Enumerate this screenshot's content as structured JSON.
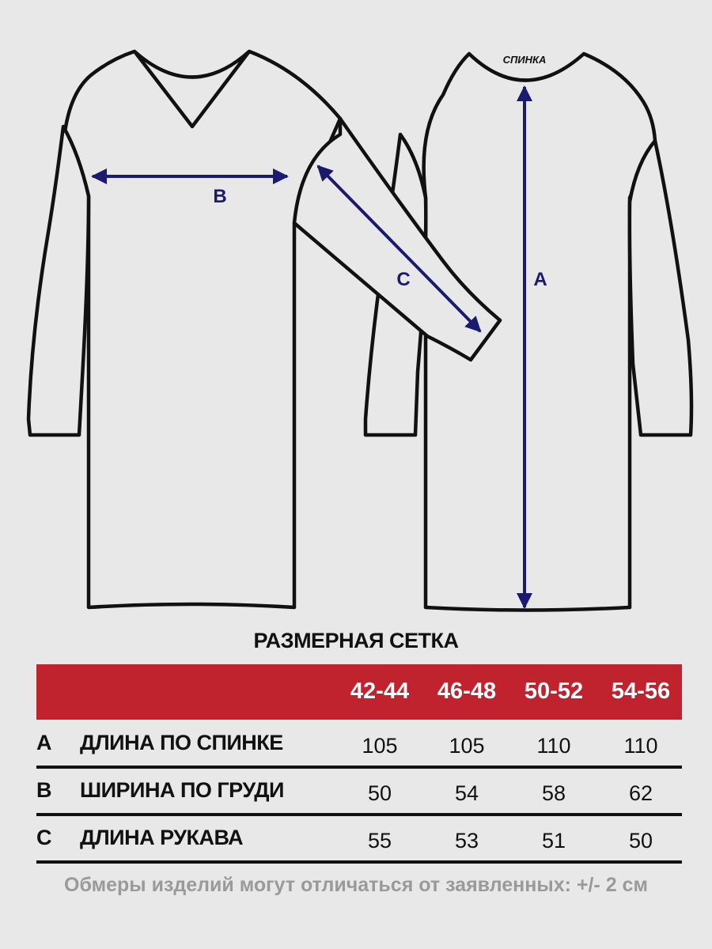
{
  "diagram": {
    "back_label": "СПИНКА",
    "measure_labels": [
      "A",
      "B",
      "C"
    ],
    "arrow_color": "#1a1a6e",
    "outline_color": "#111111"
  },
  "table": {
    "title": "РАЗМЕРНАЯ СЕТКА",
    "header_color": "#c0222e",
    "sizes": [
      "42-44",
      "46-48",
      "50-52",
      "54-56"
    ],
    "rows": [
      {
        "letter": "A",
        "label": "ДЛИНА ПО СПИНКЕ",
        "values": [
          "105",
          "105",
          "110",
          "110"
        ]
      },
      {
        "letter": "B",
        "label": "ШИРИНА ПО ГРУДИ",
        "values": [
          "50",
          "54",
          "58",
          "62"
        ]
      },
      {
        "letter": "C",
        "label": "ДЛИНА РУКАВА",
        "values": [
          "55",
          "53",
          "51",
          "50"
        ]
      }
    ],
    "note": "Обмеры изделий могут отличаться от заявленных: +/- 2 см"
  }
}
